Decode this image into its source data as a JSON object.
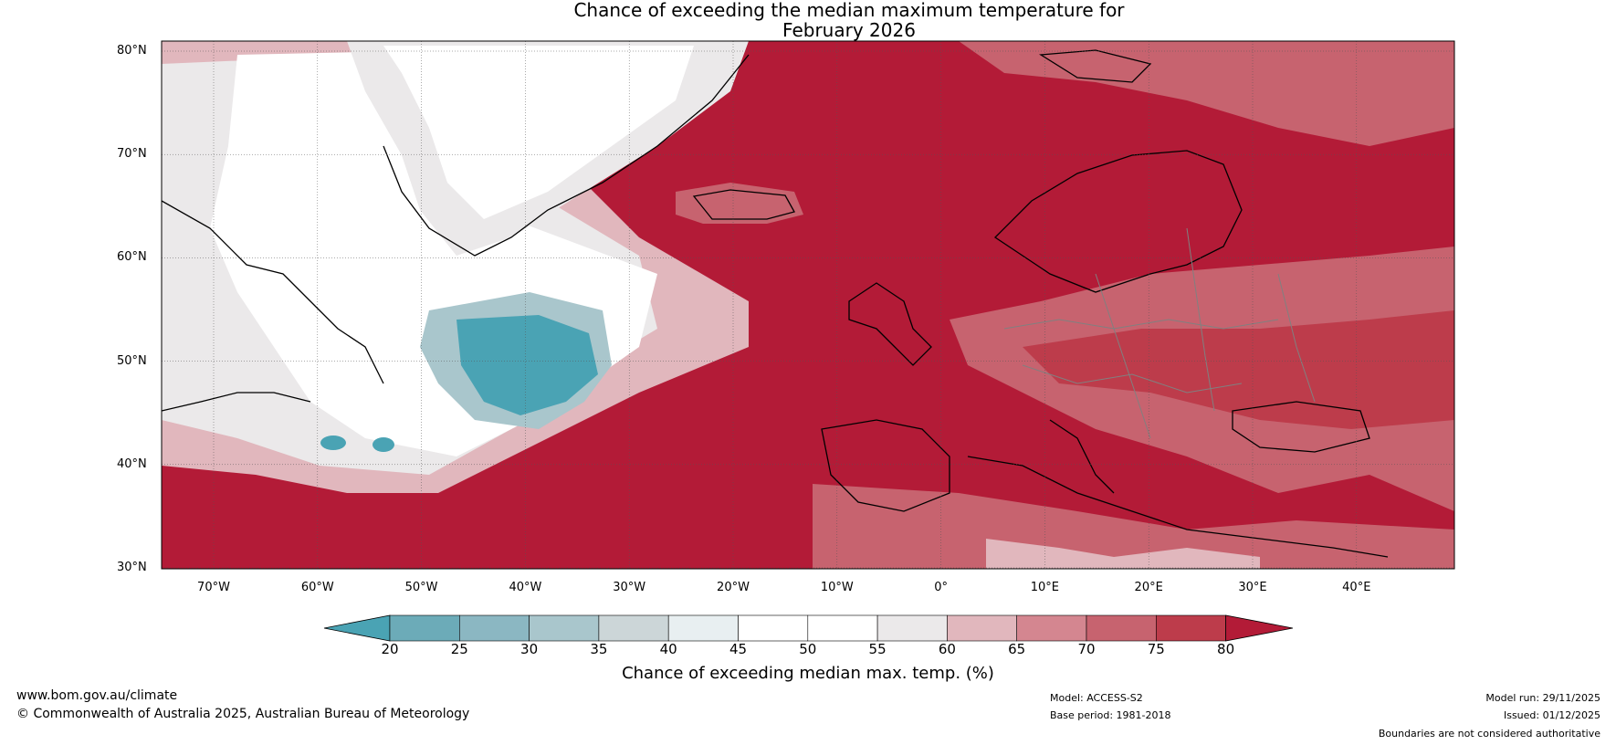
{
  "title": {
    "line1": "Chance of exceeding the median maximum temperature for",
    "line2": "February 2026"
  },
  "map": {
    "lat_labels": [
      "80°N",
      "70°N",
      "60°N",
      "50°N",
      "40°N",
      "30°N"
    ],
    "lon_labels": [
      "70°W",
      "60°W",
      "50°W",
      "40°W",
      "30°W",
      "20°W",
      "10°W",
      "0°",
      "10°E",
      "20°E",
      "30°E",
      "40°E"
    ]
  },
  "colorbar": {
    "ticks": [
      "20",
      "25",
      "30",
      "35",
      "40",
      "45",
      "50",
      "55",
      "60",
      "65",
      "70",
      "75",
      "80"
    ],
    "colors": [
      "#4aa3b4",
      "#6cabb8",
      "#8bb7c2",
      "#a9c6cc",
      "#ccd6d8",
      "#e8eff1",
      "#ffffff",
      "#ffffff",
      "#ebe9ea",
      "#e1b7bd",
      "#d48690",
      "#c7636f",
      "#bd3c4b",
      "#b31b37"
    ],
    "title": "Chance of exceeding median max. temp. (%)"
  },
  "footer": {
    "website": "www.bom.gov.au/climate",
    "copyright": "© Commonwealth of Australia 2025, Australian Bureau of Meteorology",
    "model": "Model: ACCESS-S2",
    "base_period": "Base period: 1981-2018",
    "model_run": "Model run: 29/11/2025",
    "issued": "Issued: 01/12/2025",
    "disclaimer": "Boundaries are not considered authoritative"
  }
}
